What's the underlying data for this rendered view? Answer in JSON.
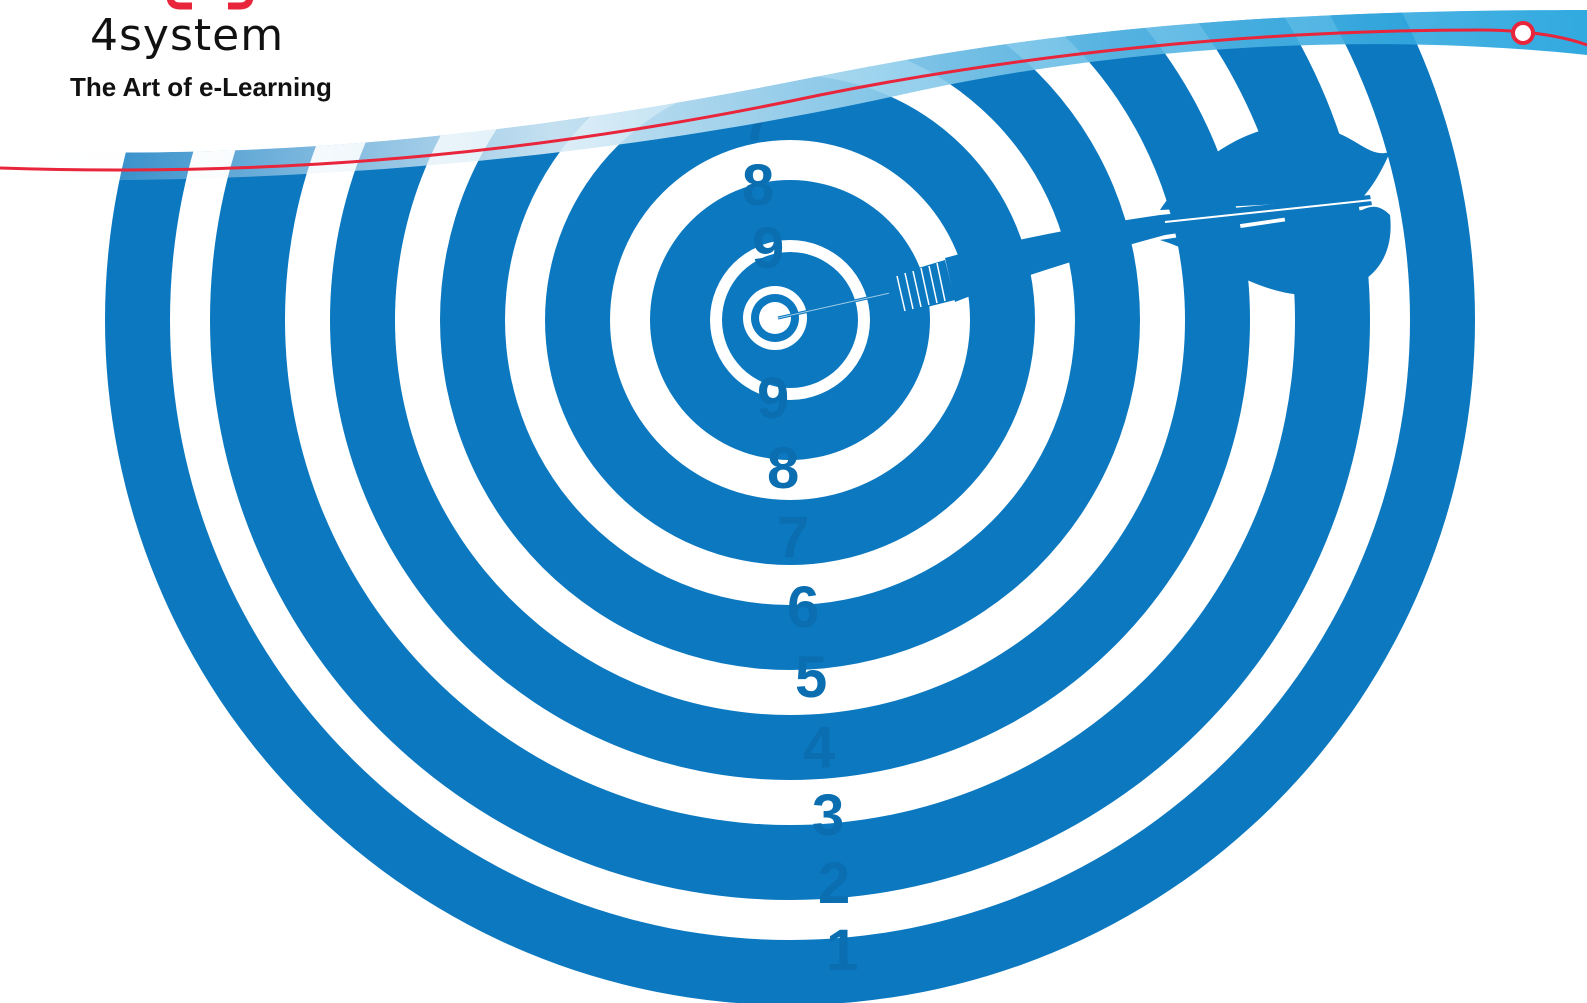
{
  "brand": {
    "name": "4system",
    "tagline": "The Art of e-Learning",
    "logo_mark_icon": "logo-mark-icon"
  },
  "target": {
    "rings_upper": [
      "7",
      "8",
      "9"
    ],
    "rings_lower": [
      "9",
      "8",
      "7",
      "6",
      "5",
      "4",
      "3",
      "2",
      "1"
    ],
    "ring_color": "#0b78c0",
    "background_color": "#ffffff",
    "dart_icon": "dart-icon"
  },
  "header_swoosh": {
    "accent_red": "#e8253a",
    "accent_blue": "#1aa0dc"
  }
}
